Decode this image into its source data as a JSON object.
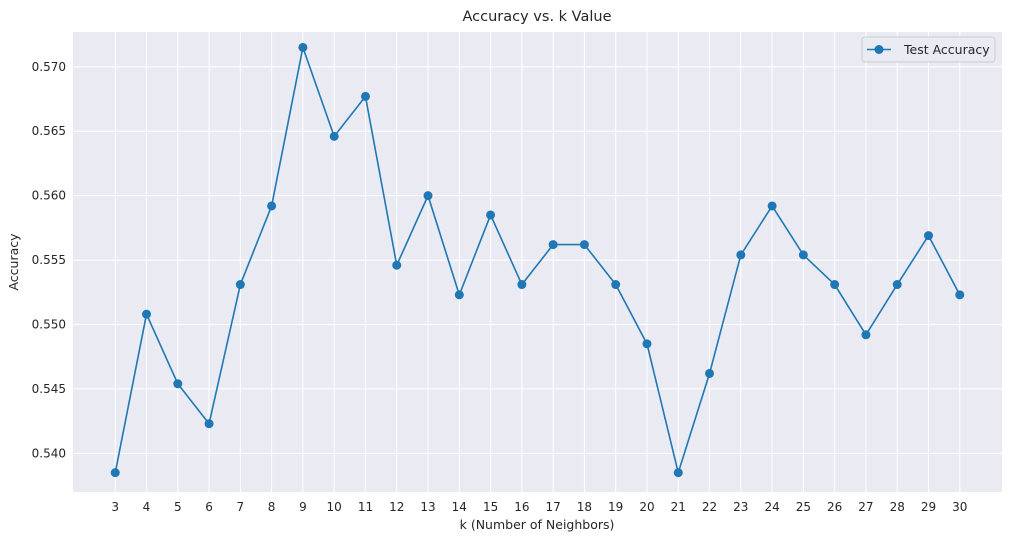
{
  "chart_data": {
    "type": "line",
    "title": "Accuracy vs. k Value",
    "xlabel": "k (Number of Neighbors)",
    "ylabel": "Accuracy",
    "x": [
      3,
      4,
      5,
      6,
      7,
      8,
      9,
      10,
      11,
      12,
      13,
      14,
      15,
      16,
      17,
      18,
      19,
      20,
      21,
      22,
      23,
      24,
      25,
      26,
      27,
      28,
      29,
      30
    ],
    "xticks": [
      "3",
      "4",
      "5",
      "6",
      "7",
      "8",
      "9",
      "10",
      "11",
      "12",
      "13",
      "14",
      "15",
      "16",
      "17",
      "18",
      "19",
      "20",
      "21",
      "22",
      "23",
      "24",
      "25",
      "26",
      "27",
      "28",
      "29",
      "30"
    ],
    "yticks": [
      "0.540",
      "0.545",
      "0.550",
      "0.555",
      "0.560",
      "0.565",
      "0.570"
    ],
    "ylim": [
      0.537,
      0.5727
    ],
    "xlim": [
      1.65,
      31.35
    ],
    "series": [
      {
        "name": "Test Accuracy",
        "color": "#1f77b4",
        "marker": "circle",
        "values": [
          0.5385,
          0.5508,
          0.5454,
          0.5423,
          0.5531,
          0.5592,
          0.5715,
          0.5646,
          0.5677,
          0.5546,
          0.56,
          0.5523,
          0.5585,
          0.5531,
          0.5562,
          0.5562,
          0.5531,
          0.5485,
          0.5385,
          0.5462,
          0.5554,
          0.5592,
          0.5554,
          0.5531,
          0.5492,
          0.5531,
          0.5569,
          0.5523
        ]
      }
    ],
    "grid": true,
    "legend_position": "top-right",
    "background_color": "#eaeaf2",
    "grid_color": "#ffffff"
  }
}
